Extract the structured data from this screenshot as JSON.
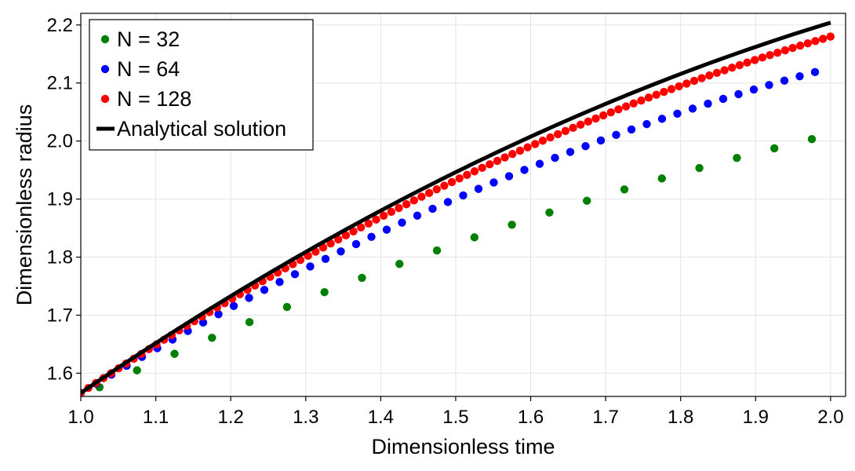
{
  "chart_data": {
    "type": "scatter",
    "xlabel": "Dimensionless time",
    "ylabel": "Dimensionless radius",
    "xlim": [
      1.0,
      2.02
    ],
    "ylim": [
      1.56,
      2.22
    ],
    "xticks": [
      "1.0",
      "1.1",
      "1.2",
      "1.3",
      "1.4",
      "1.5",
      "1.6",
      "1.7",
      "1.8",
      "1.9",
      "2.0"
    ],
    "yticks": [
      "1.6",
      "1.7",
      "1.8",
      "1.9",
      "2.0",
      "2.1",
      "2.2"
    ],
    "grid": true,
    "legend_position": "top-left",
    "series": [
      {
        "name": "N = 32",
        "type": "scatter",
        "color": "#008000",
        "x_start": 1.025,
        "x_step": 0.05,
        "count": 20,
        "y_fit": {
          "a": 1.561,
          "b": 0.5975,
          "c": -0.1475
        }
      },
      {
        "name": "N = 64",
        "type": "scatter",
        "color": "#0000ff",
        "x_start": 1.0,
        "x_step": 0.0204,
        "count": 49,
        "y_fit": {
          "a": 1.566,
          "b": 0.779,
          "c": -0.219
        }
      },
      {
        "name": "N = 128",
        "type": "scatter",
        "color": "#ff0000",
        "x_start": 1.0,
        "x_step": 0.0101,
        "count": 100,
        "y_fit": {
          "a": 1.566,
          "b": 0.852,
          "c": -0.238
        }
      },
      {
        "name": "Analytical solution",
        "type": "line",
        "color": "#000000",
        "y_fit": {
          "a": 1.566,
          "b": 0.883,
          "c": -0.245
        }
      }
    ]
  }
}
